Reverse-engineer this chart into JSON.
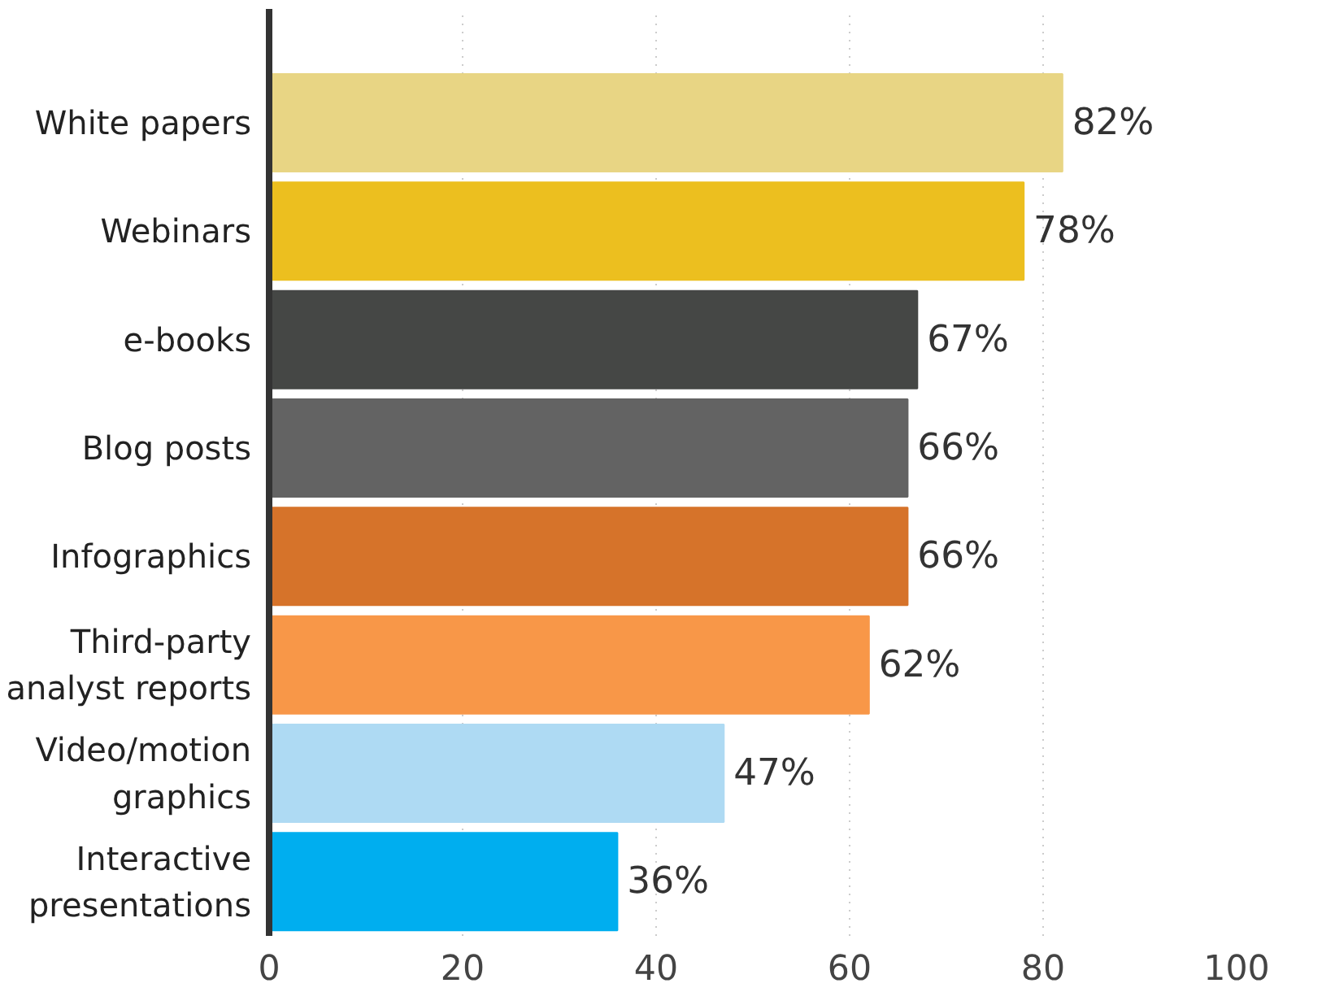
{
  "chart_data": {
    "type": "bar",
    "orientation": "horizontal",
    "categories": [
      "White papers",
      "Webinars",
      "e-books",
      "Blog posts",
      "Infographics",
      "Third-party\nanalyst reports",
      "Video/motion\ngraphics",
      "Interactive\npresentations"
    ],
    "values": [
      82,
      78,
      67,
      66,
      66,
      62,
      47,
      36
    ],
    "colors": [
      "#e8d584",
      "#ecbf1f",
      "#454745",
      "#636363",
      "#d6732a",
      "#f89748",
      "#aedaf3",
      "#00aeef"
    ],
    "value_labels": [
      "82%",
      "78%",
      "67%",
      "66%",
      "66%",
      "62%",
      "47%",
      "36%"
    ],
    "xlim": [
      0,
      100
    ],
    "xticks": [
      0,
      20,
      40,
      60,
      80,
      100
    ],
    "grid": "x"
  }
}
